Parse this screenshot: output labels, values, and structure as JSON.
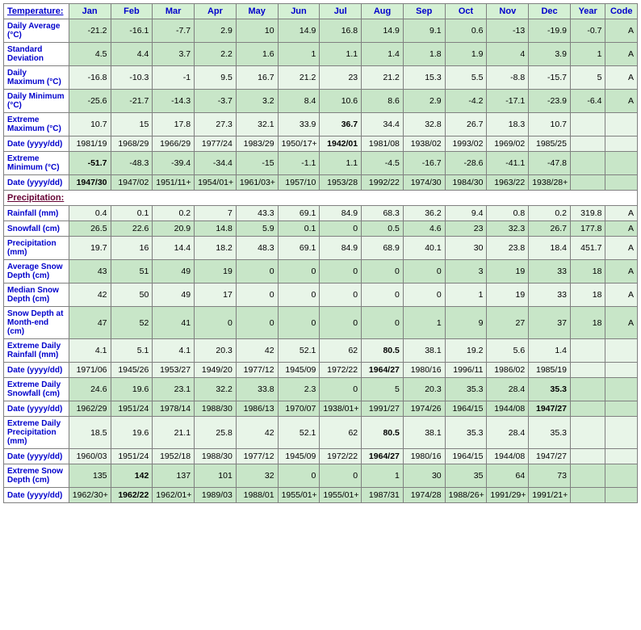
{
  "headers": {
    "topleft": "Temperature:",
    "months": [
      "Jan",
      "Feb",
      "Mar",
      "Apr",
      "May",
      "Jun",
      "Jul",
      "Aug",
      "Sep",
      "Oct",
      "Nov",
      "Dec"
    ],
    "year": "Year",
    "code": "Code"
  },
  "section2": "Precipitation:",
  "colors": {
    "header_bg": "#d4f0d4",
    "header_fg": "#0000cc",
    "section_fg": "#660033",
    "cell_light": "#e8f5e8",
    "cell_dark": "#c8e6c8",
    "border": "#808080"
  },
  "rows": [
    {
      "label": "Daily Average (°C)",
      "shade": "dark",
      "bold": [],
      "cells": [
        "-21.2",
        "-16.1",
        "-7.7",
        "2.9",
        "10",
        "14.9",
        "16.8",
        "14.9",
        "9.1",
        "0.6",
        "-13",
        "-19.9",
        "-0.7",
        "A"
      ]
    },
    {
      "label": "Standard Deviation",
      "shade": "dark",
      "bold": [],
      "cells": [
        "4.5",
        "4.4",
        "3.7",
        "2.2",
        "1.6",
        "1",
        "1.1",
        "1.4",
        "1.8",
        "1.9",
        "4",
        "3.9",
        "1",
        "A"
      ]
    },
    {
      "label": "Daily Maximum (°C)",
      "shade": "light",
      "bold": [],
      "cells": [
        "-16.8",
        "-10.3",
        "-1",
        "9.5",
        "16.7",
        "21.2",
        "23",
        "21.2",
        "15.3",
        "5.5",
        "-8.8",
        "-15.7",
        "5",
        "A"
      ]
    },
    {
      "label": "Daily Minimum (°C)",
      "shade": "dark",
      "bold": [],
      "cells": [
        "-25.6",
        "-21.7",
        "-14.3",
        "-3.7",
        "3.2",
        "8.4",
        "10.6",
        "8.6",
        "2.9",
        "-4.2",
        "-17.1",
        "-23.9",
        "-6.4",
        "A"
      ]
    },
    {
      "label": "Extreme Maximum (°C)",
      "shade": "light",
      "bold": [
        6
      ],
      "cells": [
        "10.7",
        "15",
        "17.8",
        "27.3",
        "32.1",
        "33.9",
        "36.7",
        "34.4",
        "32.8",
        "26.7",
        "18.3",
        "10.7",
        "",
        ""
      ]
    },
    {
      "label": "Date (yyyy/dd)",
      "shade": "light",
      "bold": [
        6
      ],
      "cells": [
        "1981/19",
        "1968/29",
        "1966/29",
        "1977/24",
        "1983/29",
        "1950/17+",
        "1942/01",
        "1981/08",
        "1938/02",
        "1993/02",
        "1969/02",
        "1985/25",
        "",
        ""
      ]
    },
    {
      "label": "Extreme Minimum (°C)",
      "shade": "dark",
      "bold": [
        0
      ],
      "cells": [
        "-51.7",
        "-48.3",
        "-39.4",
        "-34.4",
        "-15",
        "-1.1",
        "1.1",
        "-4.5",
        "-16.7",
        "-28.6",
        "-41.1",
        "-47.8",
        "",
        ""
      ]
    },
    {
      "label": "Date (yyyy/dd)",
      "shade": "dark",
      "bold": [
        0
      ],
      "cells": [
        "1947/30",
        "1947/02",
        "1951/11+",
        "1954/01+",
        "1961/03+",
        "1957/10",
        "1953/28",
        "1992/22",
        "1974/30",
        "1984/30",
        "1963/22",
        "1938/28+",
        "",
        ""
      ]
    }
  ],
  "rows2": [
    {
      "label": "Rainfall (mm)",
      "shade": "light",
      "bold": [],
      "cells": [
        "0.4",
        "0.1",
        "0.2",
        "7",
        "43.3",
        "69.1",
        "84.9",
        "68.3",
        "36.2",
        "9.4",
        "0.8",
        "0.2",
        "319.8",
        "A"
      ]
    },
    {
      "label": "Snowfall (cm)",
      "shade": "dark",
      "bold": [],
      "cells": [
        "26.5",
        "22.6",
        "20.9",
        "14.8",
        "5.9",
        "0.1",
        "0",
        "0.5",
        "4.6",
        "23",
        "32.3",
        "26.7",
        "177.8",
        "A"
      ]
    },
    {
      "label": "Precipitation (mm)",
      "shade": "light",
      "bold": [],
      "cells": [
        "19.7",
        "16",
        "14.4",
        "18.2",
        "48.3",
        "69.1",
        "84.9",
        "68.9",
        "40.1",
        "30",
        "23.8",
        "18.4",
        "451.7",
        "A"
      ]
    },
    {
      "label": "Average Snow Depth (cm)",
      "shade": "dark",
      "bold": [],
      "cells": [
        "43",
        "51",
        "49",
        "19",
        "0",
        "0",
        "0",
        "0",
        "0",
        "3",
        "19",
        "33",
        "18",
        "A"
      ]
    },
    {
      "label": "Median Snow Depth (cm)",
      "shade": "light",
      "bold": [],
      "cells": [
        "42",
        "50",
        "49",
        "17",
        "0",
        "0",
        "0",
        "0",
        "0",
        "1",
        "19",
        "33",
        "18",
        "A"
      ]
    },
    {
      "label": "Snow Depth at Month-end (cm)",
      "shade": "dark",
      "bold": [],
      "cells": [
        "47",
        "52",
        "41",
        "0",
        "0",
        "0",
        "0",
        "0",
        "1",
        "9",
        "27",
        "37",
        "18",
        "A"
      ]
    },
    {
      "label": "Extreme Daily Rainfall (mm)",
      "shade": "light",
      "bold": [
        7
      ],
      "cells": [
        "4.1",
        "5.1",
        "4.1",
        "20.3",
        "42",
        "52.1",
        "62",
        "80.5",
        "38.1",
        "19.2",
        "5.6",
        "1.4",
        "",
        ""
      ]
    },
    {
      "label": "Date (yyyy/dd)",
      "shade": "light",
      "bold": [
        7
      ],
      "cells": [
        "1971/06",
        "1945/26",
        "1953/27",
        "1949/20",
        "1977/12",
        "1945/09",
        "1972/22",
        "1964/27",
        "1980/16",
        "1996/11",
        "1986/02",
        "1985/19",
        "",
        ""
      ]
    },
    {
      "label": "Extreme Daily Snowfall (cm)",
      "shade": "dark",
      "bold": [
        11
      ],
      "cells": [
        "24.6",
        "19.6",
        "23.1",
        "32.2",
        "33.8",
        "2.3",
        "0",
        "5",
        "20.3",
        "35.3",
        "28.4",
        "35.3",
        "",
        ""
      ]
    },
    {
      "label": "Date (yyyy/dd)",
      "shade": "dark",
      "bold": [
        11
      ],
      "cells": [
        "1962/29",
        "1951/24",
        "1978/14",
        "1988/30",
        "1986/13",
        "1970/07",
        "1938/01+",
        "1991/27",
        "1974/26",
        "1964/15",
        "1944/08",
        "1947/27",
        "",
        ""
      ]
    },
    {
      "label": "Extreme Daily Precipitation (mm)",
      "shade": "light",
      "bold": [
        7
      ],
      "cells": [
        "18.5",
        "19.6",
        "21.1",
        "25.8",
        "42",
        "52.1",
        "62",
        "80.5",
        "38.1",
        "35.3",
        "28.4",
        "35.3",
        "",
        ""
      ]
    },
    {
      "label": "Date (yyyy/dd)",
      "shade": "light",
      "bold": [
        7
      ],
      "cells": [
        "1960/03",
        "1951/24",
        "1952/18",
        "1988/30",
        "1977/12",
        "1945/09",
        "1972/22",
        "1964/27",
        "1980/16",
        "1964/15",
        "1944/08",
        "1947/27",
        "",
        ""
      ]
    },
    {
      "label": "Extreme Snow Depth (cm)",
      "shade": "dark",
      "bold": [
        1
      ],
      "cells": [
        "135",
        "142",
        "137",
        "101",
        "32",
        "0",
        "0",
        "1",
        "30",
        "35",
        "64",
        "73",
        "",
        ""
      ]
    },
    {
      "label": "Date (yyyy/dd)",
      "shade": "dark",
      "bold": [
        1
      ],
      "cells": [
        "1962/30+",
        "1962/22",
        "1962/01+",
        "1989/03",
        "1988/01",
        "1955/01+",
        "1955/01+",
        "1987/31",
        "1974/28",
        "1988/26+",
        "1991/29+",
        "1991/21+",
        "",
        ""
      ]
    }
  ]
}
